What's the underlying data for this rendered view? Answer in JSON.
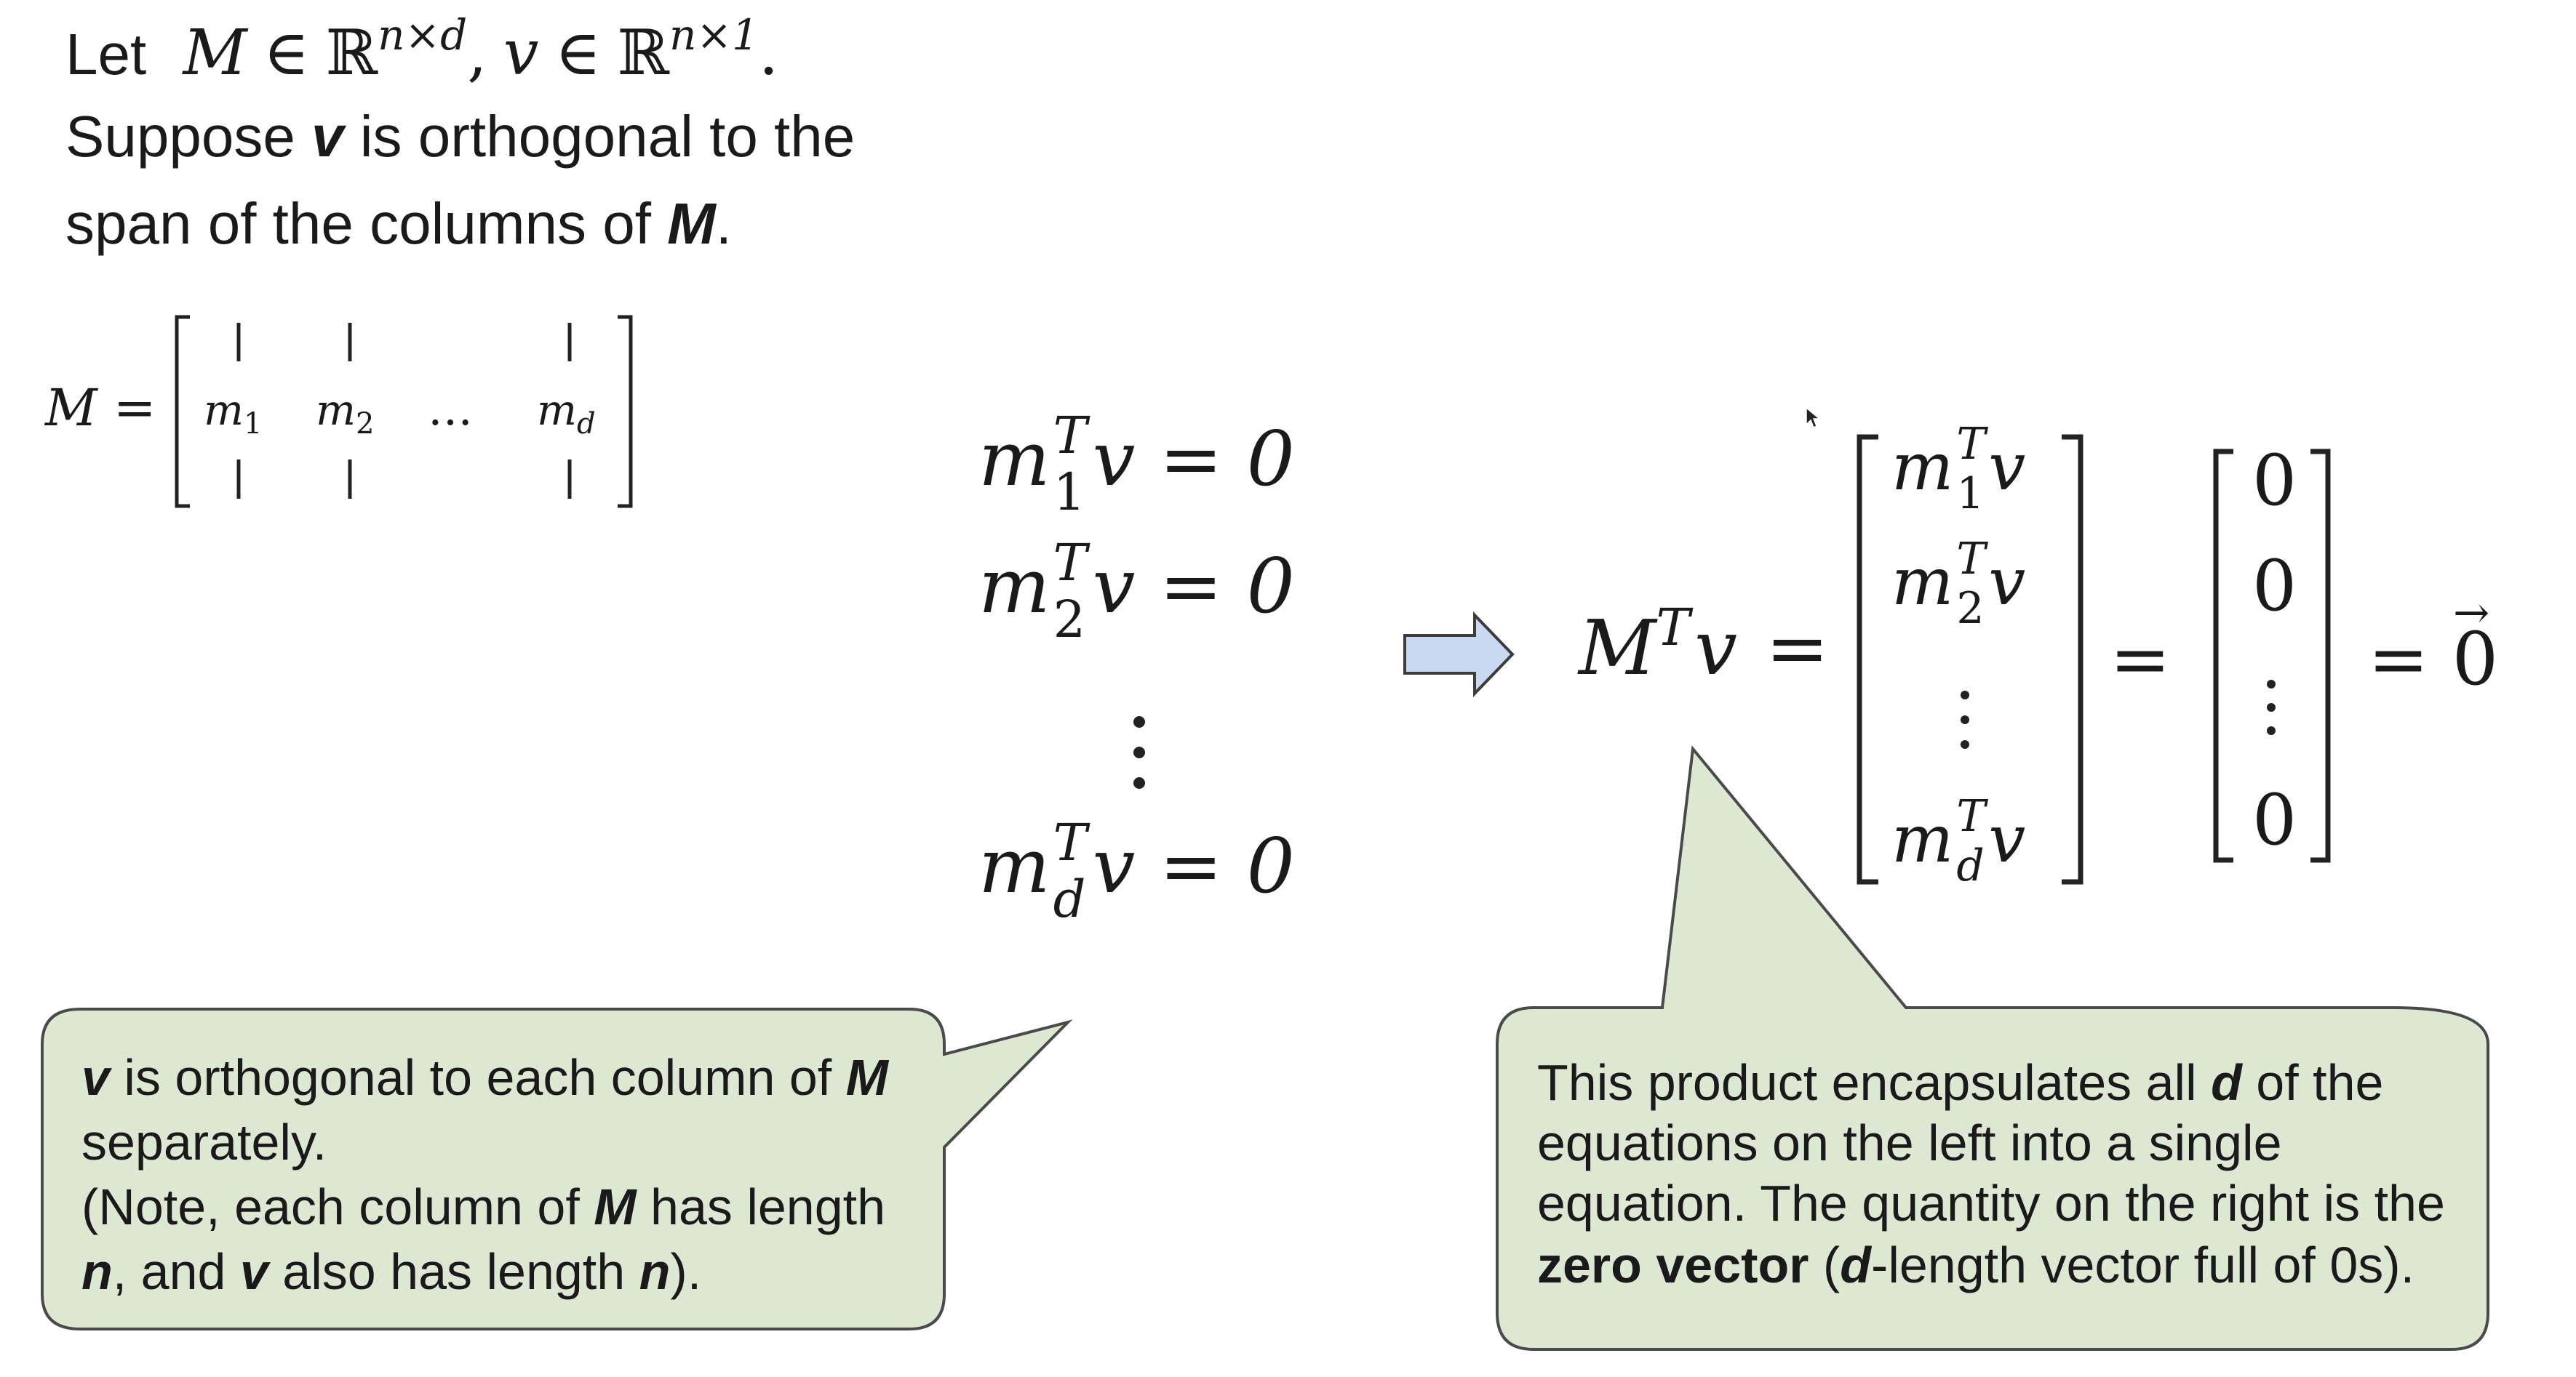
{
  "intro": {
    "line1_word": "Let",
    "M": "M",
    "in_sym": "∈",
    "R": "ℝ",
    "dim_M": "n×d",
    "comma": ",",
    "v": "v",
    "dim_v": "n×1",
    "period": ".",
    "line2_a": "Suppose ",
    "line2_v": "v",
    "line2_b": " is orthogonal to the",
    "line3_a": "span of the columns of ",
    "line3_M": "M",
    "line3_b": "."
  },
  "matrix_def": {
    "lhs": "M =",
    "col1": "m",
    "col1_sub": "1",
    "col2": "m",
    "col2_sub": "2",
    "ellipsis": "…",
    "cold": "m",
    "cold_sub": "d"
  },
  "equations": {
    "m": "m",
    "T": "T",
    "sub1": "1",
    "sub2": "2",
    "subd": "d",
    "rhs": "v = 0"
  },
  "product": {
    "lhs_M": "M",
    "lhs_T": "T",
    "lhs_v": "v",
    "eq": "=",
    "entry_m": "m",
    "entry_T": "T",
    "entry_v": "v",
    "sub1": "1",
    "sub2": "2",
    "subd": "d",
    "zero": "0",
    "eq_zero_vec": "= 0",
    "vec_arrow": "→"
  },
  "callout_left": {
    "l1_v": "v",
    "l1_a": " is orthogonal to each column of ",
    "l1_M": "M",
    "l2": "separately.",
    "l3_a": "(Note, each column of ",
    "l3_M": "M",
    "l3_b": " has length",
    "l4_n1": "n",
    "l4_a": ", and ",
    "l4_v": "v",
    "l4_b": " also has length ",
    "l4_n2": "n",
    "l4_c": ")."
  },
  "callout_right": {
    "l1_a": "This product encapsulates all ",
    "l1_d": "d",
    "l1_b": " of the",
    "l2": "equations on the left into a single",
    "l3": "equation. The quantity on the right is the",
    "l4_bold": "zero vector",
    "l4_a": " (",
    "l4_d": "d",
    "l4_b": "-length vector full of 0s)."
  },
  "colors": {
    "callout_fill": "#dde8d2",
    "callout_stroke": "#4a4a4a",
    "arrow_fill": "#c9d9f1",
    "arrow_stroke": "#3c3c3c"
  }
}
